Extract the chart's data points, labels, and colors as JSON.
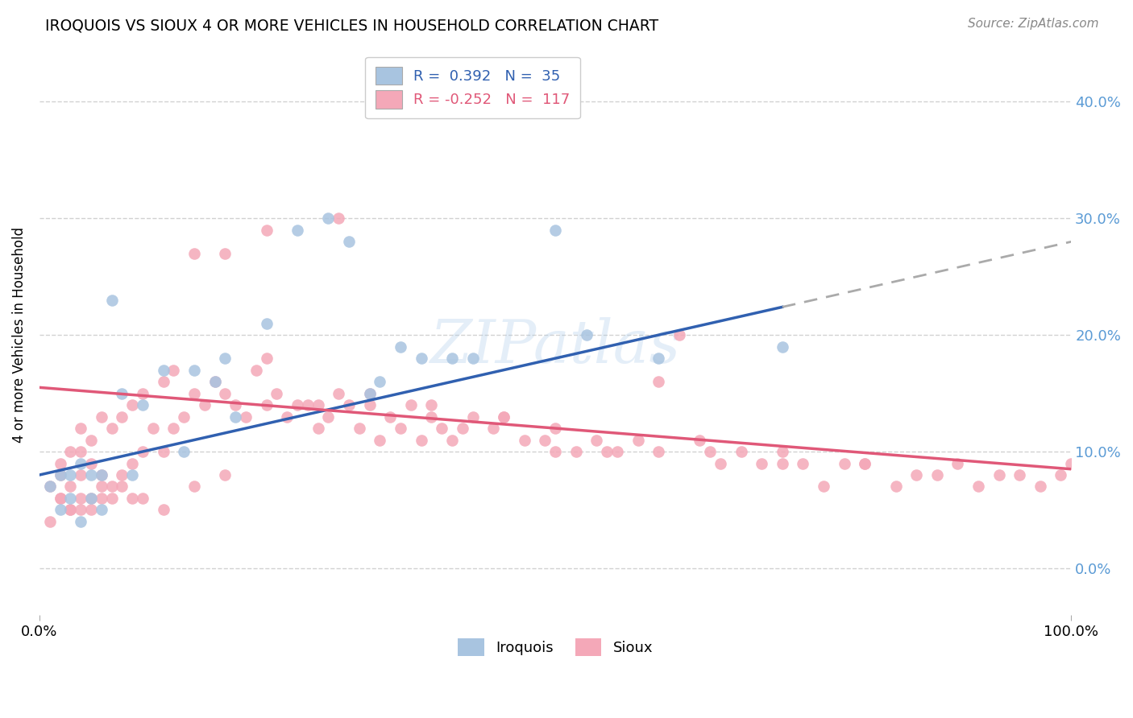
{
  "title": "IROQUOIS VS SIOUX 4 OR MORE VEHICLES IN HOUSEHOLD CORRELATION CHART",
  "source": "Source: ZipAtlas.com",
  "ylabel": "4 or more Vehicles in Household",
  "xlim": [
    0.0,
    1.0
  ],
  "ylim": [
    -0.04,
    0.44
  ],
  "yticks": [
    0.0,
    0.1,
    0.2,
    0.3,
    0.4
  ],
  "ytick_labels": [
    "0.0%",
    "10.0%",
    "20.0%",
    "30.0%",
    "40.0%"
  ],
  "xticks": [
    0.0,
    1.0
  ],
  "xtick_labels": [
    "0.0%",
    "100.0%"
  ],
  "legend_r_iroquois": "0.392",
  "legend_n_iroquois": "35",
  "legend_r_sioux": "-0.252",
  "legend_n_sioux": "117",
  "iroquois_color": "#a8c4e0",
  "sioux_color": "#f4a8b8",
  "iroquois_line_color": "#3060b0",
  "sioux_line_color": "#e05878",
  "iroquois_line_y0": 0.08,
  "iroquois_line_y1": 0.28,
  "sioux_line_y0": 0.155,
  "sioux_line_y1": 0.085,
  "watermark": "ZIPatlas",
  "iroquois_x": [
    0.01,
    0.02,
    0.02,
    0.03,
    0.03,
    0.04,
    0.04,
    0.05,
    0.05,
    0.06,
    0.06,
    0.07,
    0.08,
    0.09,
    0.1,
    0.12,
    0.14,
    0.15,
    0.17,
    0.18,
    0.19,
    0.22,
    0.25,
    0.28,
    0.3,
    0.32,
    0.33,
    0.35,
    0.37,
    0.4,
    0.42,
    0.5,
    0.53,
    0.6,
    0.72
  ],
  "iroquois_y": [
    0.07,
    0.05,
    0.08,
    0.06,
    0.08,
    0.04,
    0.09,
    0.06,
    0.08,
    0.05,
    0.08,
    0.23,
    0.15,
    0.08,
    0.14,
    0.17,
    0.1,
    0.17,
    0.16,
    0.18,
    0.13,
    0.21,
    0.29,
    0.3,
    0.28,
    0.15,
    0.16,
    0.19,
    0.18,
    0.18,
    0.18,
    0.29,
    0.2,
    0.18,
    0.19
  ],
  "sioux_x": [
    0.01,
    0.02,
    0.02,
    0.02,
    0.03,
    0.03,
    0.03,
    0.04,
    0.04,
    0.04,
    0.04,
    0.05,
    0.05,
    0.05,
    0.06,
    0.06,
    0.06,
    0.07,
    0.07,
    0.08,
    0.08,
    0.09,
    0.09,
    0.1,
    0.1,
    0.11,
    0.12,
    0.12,
    0.13,
    0.13,
    0.14,
    0.15,
    0.15,
    0.16,
    0.17,
    0.18,
    0.18,
    0.19,
    0.2,
    0.21,
    0.22,
    0.22,
    0.23,
    0.24,
    0.25,
    0.26,
    0.27,
    0.28,
    0.29,
    0.29,
    0.3,
    0.31,
    0.32,
    0.33,
    0.34,
    0.35,
    0.36,
    0.37,
    0.38,
    0.39,
    0.4,
    0.41,
    0.42,
    0.44,
    0.45,
    0.47,
    0.49,
    0.5,
    0.52,
    0.54,
    0.56,
    0.58,
    0.6,
    0.62,
    0.64,
    0.66,
    0.68,
    0.7,
    0.72,
    0.74,
    0.76,
    0.78,
    0.8,
    0.83,
    0.85,
    0.87,
    0.89,
    0.91,
    0.93,
    0.95,
    0.97,
    0.99,
    1.0,
    0.01,
    0.02,
    0.03,
    0.04,
    0.05,
    0.06,
    0.07,
    0.08,
    0.09,
    0.1,
    0.12,
    0.15,
    0.18,
    0.22,
    0.27,
    0.32,
    0.38,
    0.45,
    0.5,
    0.55,
    0.6,
    0.65,
    0.72,
    0.8
  ],
  "sioux_y": [
    0.07,
    0.06,
    0.08,
    0.09,
    0.05,
    0.07,
    0.1,
    0.05,
    0.08,
    0.1,
    0.12,
    0.06,
    0.09,
    0.11,
    0.06,
    0.08,
    0.13,
    0.07,
    0.12,
    0.08,
    0.13,
    0.09,
    0.14,
    0.1,
    0.15,
    0.12,
    0.1,
    0.16,
    0.12,
    0.17,
    0.13,
    0.15,
    0.27,
    0.14,
    0.16,
    0.15,
    0.27,
    0.14,
    0.13,
    0.17,
    0.14,
    0.29,
    0.15,
    0.13,
    0.14,
    0.14,
    0.12,
    0.13,
    0.15,
    0.3,
    0.14,
    0.12,
    0.14,
    0.11,
    0.13,
    0.12,
    0.14,
    0.11,
    0.13,
    0.12,
    0.11,
    0.12,
    0.13,
    0.12,
    0.13,
    0.11,
    0.11,
    0.12,
    0.1,
    0.11,
    0.1,
    0.11,
    0.1,
    0.2,
    0.11,
    0.09,
    0.1,
    0.09,
    0.1,
    0.09,
    0.07,
    0.09,
    0.09,
    0.07,
    0.08,
    0.08,
    0.09,
    0.07,
    0.08,
    0.08,
    0.07,
    0.08,
    0.09,
    0.04,
    0.06,
    0.05,
    0.06,
    0.05,
    0.07,
    0.06,
    0.07,
    0.06,
    0.06,
    0.05,
    0.07,
    0.08,
    0.18,
    0.14,
    0.15,
    0.14,
    0.13,
    0.1,
    0.1,
    0.16,
    0.1,
    0.09,
    0.09
  ]
}
